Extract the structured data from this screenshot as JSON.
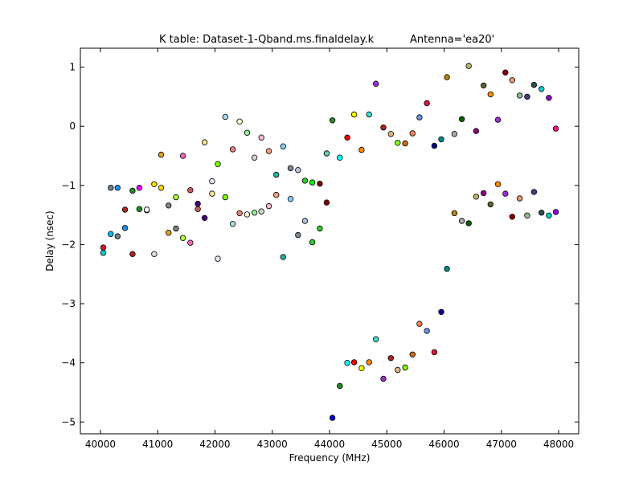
{
  "chart_data": {
    "type": "scatter",
    "title": "K table: Dataset-1-Qband.ms.finaldelay.k",
    "title_right": "Antenna='ea20'",
    "xlabel": "Frequency (MHz)",
    "ylabel": "Delay (nsec)",
    "xlim": [
      39650,
      48350
    ],
    "ylim": [
      -5.2,
      1.32
    ],
    "xticks": [
      40000,
      41000,
      42000,
      43000,
      44000,
      45000,
      46000,
      47000,
      48000
    ],
    "xtick_labels": [
      "40000",
      "41000",
      "42000",
      "43000",
      "44000",
      "45000",
      "46000",
      "47000",
      "48000"
    ],
    "yticks": [
      1,
      0,
      -1,
      -2,
      -3,
      -4,
      -5
    ],
    "ytick_labels": [
      "1",
      "0",
      "−1",
      "−2",
      "−3",
      "−4",
      "−5"
    ],
    "grid": false,
    "legend": false,
    "points": [
      {
        "x": 40050,
        "y": -2.05,
        "color": "#dc143c"
      },
      {
        "x": 40050,
        "y": -2.14,
        "color": "#00ced1"
      },
      {
        "x": 40180,
        "y": -1.82,
        "color": "#00bfff"
      },
      {
        "x": 40180,
        "y": -1.04,
        "color": "#708090"
      },
      {
        "x": 40300,
        "y": -1.86,
        "color": "#708090"
      },
      {
        "x": 40300,
        "y": -1.04,
        "color": "#1e90ff"
      },
      {
        "x": 40430,
        "y": -1.72,
        "color": "#1e90ff"
      },
      {
        "x": 40430,
        "y": -1.41,
        "color": "#b22222"
      },
      {
        "x": 40560,
        "y": -2.16,
        "color": "#b22222"
      },
      {
        "x": 40560,
        "y": -1.09,
        "color": "#228b22"
      },
      {
        "x": 40680,
        "y": -1.04,
        "color": "#ff00ff"
      },
      {
        "x": 40680,
        "y": -1.4,
        "color": "#228b22"
      },
      {
        "x": 40810,
        "y": -1.42,
        "color": "#dcdcdc"
      },
      {
        "x": 40810,
        "y": -1.41,
        "color": "#f8f8ff"
      },
      {
        "x": 40940,
        "y": -0.98,
        "color": "#ffd700"
      },
      {
        "x": 40940,
        "y": -2.16,
        "color": "#dcdcdc"
      },
      {
        "x": 41060,
        "y": -0.48,
        "color": "#daa520"
      },
      {
        "x": 41060,
        "y": -1.04,
        "color": "#ffd700"
      },
      {
        "x": 41190,
        "y": -1.8,
        "color": "#daa520"
      },
      {
        "x": 41190,
        "y": -1.34,
        "color": "#808080"
      },
      {
        "x": 41320,
        "y": -1.2,
        "color": "#adff2f"
      },
      {
        "x": 41320,
        "y": -1.73,
        "color": "#808080"
      },
      {
        "x": 41440,
        "y": -0.5,
        "color": "#ff69b4"
      },
      {
        "x": 41440,
        "y": -1.89,
        "color": "#adff2f"
      },
      {
        "x": 41570,
        "y": -1.08,
        "color": "#cd5c5c"
      },
      {
        "x": 41570,
        "y": -1.97,
        "color": "#ff69b4"
      },
      {
        "x": 41700,
        "y": -1.31,
        "color": "#4b0082"
      },
      {
        "x": 41700,
        "y": -1.4,
        "color": "#cd5c5c"
      },
      {
        "x": 41820,
        "y": -0.27,
        "color": "#f0e68c"
      },
      {
        "x": 41820,
        "y": -1.55,
        "color": "#4b0082"
      },
      {
        "x": 41950,
        "y": -0.93,
        "color": "#e6e6fa"
      },
      {
        "x": 41950,
        "y": -1.14,
        "color": "#f0e68c"
      },
      {
        "x": 42050,
        "y": -0.64,
        "color": "#7cfc00"
      },
      {
        "x": 42050,
        "y": -2.24,
        "color": "#e6e6fa"
      },
      {
        "x": 42180,
        "y": 0.16,
        "color": "#add8e6"
      },
      {
        "x": 42180,
        "y": -1.2,
        "color": "#7cfc00"
      },
      {
        "x": 42310,
        "y": -0.39,
        "color": "#f08080"
      },
      {
        "x": 42310,
        "y": -1.65,
        "color": "#add8e6"
      },
      {
        "x": 42430,
        "y": 0.08,
        "color": "#fafad2"
      },
      {
        "x": 42430,
        "y": -1.47,
        "color": "#f08080"
      },
      {
        "x": 42560,
        "y": -0.11,
        "color": "#90ee90"
      },
      {
        "x": 42560,
        "y": -1.49,
        "color": "#fafad2"
      },
      {
        "x": 42690,
        "y": -0.53,
        "color": "#d3d3d3"
      },
      {
        "x": 42690,
        "y": -1.46,
        "color": "#90ee90"
      },
      {
        "x": 42810,
        "y": -0.19,
        "color": "#ffb6c1"
      },
      {
        "x": 42810,
        "y": -1.44,
        "color": "#d3d3d3"
      },
      {
        "x": 42940,
        "y": -0.42,
        "color": "#ffa07a"
      },
      {
        "x": 42940,
        "y": -1.35,
        "color": "#ffb6c1"
      },
      {
        "x": 43070,
        "y": -0.82,
        "color": "#20b2aa"
      },
      {
        "x": 43070,
        "y": -1.16,
        "color": "#ffa07a"
      },
      {
        "x": 43190,
        "y": -0.34,
        "color": "#87cefa"
      },
      {
        "x": 43190,
        "y": -2.21,
        "color": "#20b2aa"
      },
      {
        "x": 43320,
        "y": -0.71,
        "color": "#778899"
      },
      {
        "x": 43320,
        "y": -1.23,
        "color": "#87cefa"
      },
      {
        "x": 43450,
        "y": -0.74,
        "color": "#b0c4de"
      },
      {
        "x": 43450,
        "y": -1.84,
        "color": "#778899"
      },
      {
        "x": 43570,
        "y": -0.92,
        "color": "#32cd32"
      },
      {
        "x": 43570,
        "y": -1.6,
        "color": "#b0c4de"
      },
      {
        "x": 43700,
        "y": -0.95,
        "color": "#00ff00"
      },
      {
        "x": 43700,
        "y": -1.96,
        "color": "#32cd32"
      },
      {
        "x": 43830,
        "y": -0.97,
        "color": "#800000"
      },
      {
        "x": 43830,
        "y": -1.73,
        "color": "#32cd32"
      },
      {
        "x": 43950,
        "y": -0.46,
        "color": "#66cdaa"
      },
      {
        "x": 43950,
        "y": -1.29,
        "color": "#800000"
      },
      {
        "x": 44050,
        "y": 0.1,
        "color": "#228b22"
      },
      {
        "x": 44050,
        "y": -4.93,
        "color": "#0000cd"
      },
      {
        "x": 44180,
        "y": -0.53,
        "color": "#00ffff"
      },
      {
        "x": 44180,
        "y": -4.39,
        "color": "#228b22"
      },
      {
        "x": 44310,
        "y": -0.19,
        "color": "#ff0000"
      },
      {
        "x": 44310,
        "y": -4.0,
        "color": "#00ffff"
      },
      {
        "x": 44430,
        "y": 0.2,
        "color": "#ffff00"
      },
      {
        "x": 44430,
        "y": -3.99,
        "color": "#ff0000"
      },
      {
        "x": 44560,
        "y": -0.4,
        "color": "#ff8c00"
      },
      {
        "x": 44560,
        "y": -4.09,
        "color": "#ffff00"
      },
      {
        "x": 44690,
        "y": 0.2,
        "color": "#40e0d0"
      },
      {
        "x": 44690,
        "y": -3.99,
        "color": "#ff8c00"
      },
      {
        "x": 44810,
        "y": 0.72,
        "color": "#9932cc"
      },
      {
        "x": 44810,
        "y": -3.6,
        "color": "#40e0d0"
      },
      {
        "x": 44940,
        "y": -0.02,
        "color": "#b22222"
      },
      {
        "x": 44940,
        "y": -4.27,
        "color": "#9932cc"
      },
      {
        "x": 45070,
        "y": -0.13,
        "color": "#deb887"
      },
      {
        "x": 45070,
        "y": -3.92,
        "color": "#b22222"
      },
      {
        "x": 45190,
        "y": -0.28,
        "color": "#7fff00"
      },
      {
        "x": 45190,
        "y": -4.12,
        "color": "#deb887"
      },
      {
        "x": 45320,
        "y": -0.29,
        "color": "#d2691e"
      },
      {
        "x": 45320,
        "y": -4.08,
        "color": "#7fff00"
      },
      {
        "x": 45450,
        "y": -0.12,
        "color": "#ff7f50"
      },
      {
        "x": 45450,
        "y": -3.86,
        "color": "#d2691e"
      },
      {
        "x": 45570,
        "y": 0.15,
        "color": "#6495ed"
      },
      {
        "x": 45570,
        "y": -3.34,
        "color": "#ff7f50"
      },
      {
        "x": 45700,
        "y": 0.39,
        "color": "#dc143c"
      },
      {
        "x": 45700,
        "y": -3.46,
        "color": "#6495ed"
      },
      {
        "x": 45830,
        "y": -0.33,
        "color": "#00008b"
      },
      {
        "x": 45830,
        "y": -3.82,
        "color": "#dc143c"
      },
      {
        "x": 45950,
        "y": -0.22,
        "color": "#008b8b"
      },
      {
        "x": 45950,
        "y": -3.14,
        "color": "#00008b"
      },
      {
        "x": 46050,
        "y": 0.83,
        "color": "#b8860b"
      },
      {
        "x": 46050,
        "y": -2.41,
        "color": "#008b8b"
      },
      {
        "x": 46180,
        "y": -0.13,
        "color": "#a9a9a9"
      },
      {
        "x": 46180,
        "y": -1.47,
        "color": "#b8860b"
      },
      {
        "x": 46310,
        "y": 0.12,
        "color": "#006400"
      },
      {
        "x": 46310,
        "y": -1.6,
        "color": "#a9a9a9"
      },
      {
        "x": 46430,
        "y": 1.02,
        "color": "#bdb76b"
      },
      {
        "x": 46430,
        "y": -1.64,
        "color": "#006400"
      },
      {
        "x": 46560,
        "y": -0.08,
        "color": "#8b008b"
      },
      {
        "x": 46560,
        "y": -1.19,
        "color": "#bdb76b"
      },
      {
        "x": 46690,
        "y": 0.69,
        "color": "#556b2f"
      },
      {
        "x": 46690,
        "y": -1.13,
        "color": "#8b008b"
      },
      {
        "x": 46810,
        "y": 0.54,
        "color": "#ff8c00"
      },
      {
        "x": 46810,
        "y": -1.32,
        "color": "#556b2f"
      },
      {
        "x": 46940,
        "y": 0.11,
        "color": "#9932cc"
      },
      {
        "x": 46940,
        "y": -0.98,
        "color": "#ff8c00"
      },
      {
        "x": 47070,
        "y": 0.91,
        "color": "#8b0000"
      },
      {
        "x": 47070,
        "y": -1.14,
        "color": "#9932cc"
      },
      {
        "x": 47190,
        "y": 0.78,
        "color": "#e9967a"
      },
      {
        "x": 47190,
        "y": -1.53,
        "color": "#8b0000"
      },
      {
        "x": 47320,
        "y": 0.52,
        "color": "#8fbc8f"
      },
      {
        "x": 47320,
        "y": -1.22,
        "color": "#e9967a"
      },
      {
        "x": 47450,
        "y": 0.5,
        "color": "#483d8b"
      },
      {
        "x": 47450,
        "y": -1.51,
        "color": "#8fbc8f"
      },
      {
        "x": 47570,
        "y": 0.7,
        "color": "#2f4f4f"
      },
      {
        "x": 47570,
        "y": -1.11,
        "color": "#483d8b"
      },
      {
        "x": 47700,
        "y": 0.63,
        "color": "#00ced1"
      },
      {
        "x": 47700,
        "y": -1.46,
        "color": "#2f4f4f"
      },
      {
        "x": 47830,
        "y": 0.48,
        "color": "#9400d3"
      },
      {
        "x": 47830,
        "y": -1.51,
        "color": "#00ced1"
      },
      {
        "x": 47950,
        "y": -0.04,
        "color": "#ff1493"
      },
      {
        "x": 47950,
        "y": -1.45,
        "color": "#9400d3"
      }
    ]
  }
}
